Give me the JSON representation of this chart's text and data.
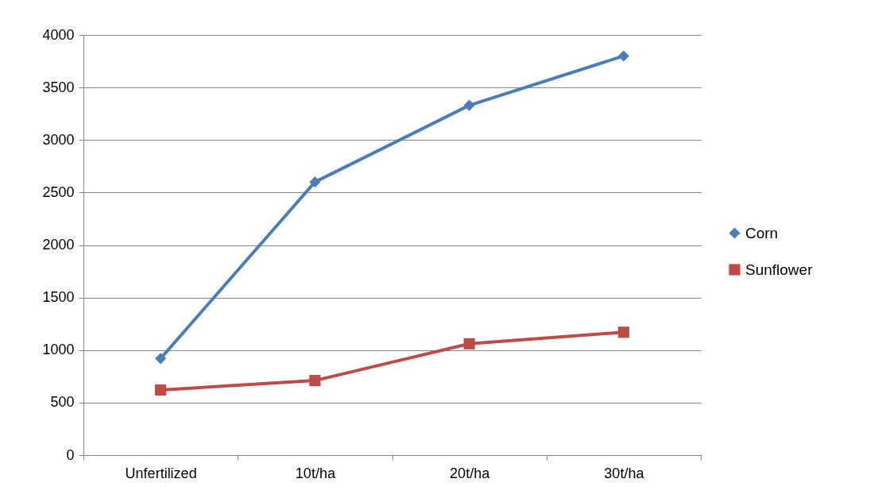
{
  "chart_data": {
    "type": "line",
    "categories": [
      "Unfertilized",
      "10t/ha",
      "20t/ha",
      "30t/ha"
    ],
    "series": [
      {
        "name": "Corn",
        "color": "#4a7ebb",
        "marker": "diamond",
        "values": [
          920,
          2600,
          3330,
          3800
        ]
      },
      {
        "name": "Sunflower",
        "color": "#be4b48",
        "marker": "square",
        "values": [
          620,
          710,
          1060,
          1170
        ]
      }
    ],
    "ylim": [
      0,
      4000
    ],
    "yticks": [
      0,
      500,
      1000,
      1500,
      2000,
      2500,
      3000,
      3500,
      4000
    ],
    "grid": "y",
    "legend": "right",
    "line_style": "solid"
  }
}
